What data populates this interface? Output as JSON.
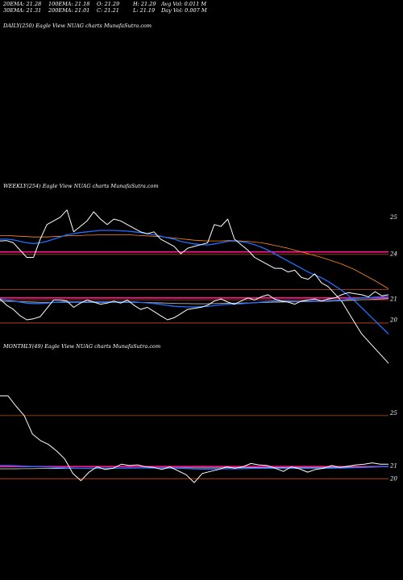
{
  "header": {
    "stats": [
      [
        "20EMA: 21.28",
        "100EMA: 21.18",
        "O: 21.29",
        "H: 21.29",
        "Avg Vol: 0.011 M"
      ],
      [
        "30EMA: 21.31",
        "200EMA: 21.01",
        "C: 21.21",
        "L: 21.19",
        "Day Vol: 0.007 M"
      ]
    ]
  },
  "colors": {
    "background": "#000000",
    "price": "#ffffff",
    "ema_short": "#1f6fff",
    "ema_mid": "#b8b8b8",
    "ema_long": "#ff8a1a",
    "avg_line": "#ff1493",
    "ref_line": "#d04a16"
  },
  "chart_data": [
    {
      "panel": "daily",
      "title": "DAILY(250) Eagle  View  NUAG charts MunafaSutra.com",
      "type": "line",
      "series": []
    },
    {
      "panel": "weekly",
      "title": "WEEKLY(254) Eagle  View  NUAG charts MunafaSutra.com",
      "type": "line",
      "upper_ticks": [
        24,
        25
      ],
      "lower_ticks": [
        21,
        20
      ],
      "upper_ylim": [
        24.0,
        25.7
      ],
      "lower_ylim": [
        19.5,
        22.2
      ],
      "upper_price": [
        24.35,
        24.36,
        24.3,
        24.1,
        23.9,
        23.9,
        24.4,
        24.8,
        24.9,
        25.0,
        25.2,
        24.6,
        24.75,
        24.9,
        25.15,
        24.95,
        24.8,
        24.95,
        24.9,
        24.8,
        24.7,
        24.6,
        24.55,
        24.6,
        24.4,
        24.3,
        24.2,
        24.0,
        24.15,
        24.2,
        24.25,
        24.3,
        24.8,
        24.75,
        24.95,
        24.4,
        24.25,
        24.1,
        23.9,
        23.8,
        23.7,
        23.6,
        23.6,
        23.5,
        23.55,
        23.35,
        23.3,
        23.45,
        23.2,
        23.1,
        22.9,
        22.7,
        22.4,
        22.1,
        21.8,
        21.6,
        21.4,
        21.2,
        21.0
      ],
      "upper_ema_short": [
        24.4,
        24.4,
        24.38,
        24.34,
        24.3,
        24.28,
        24.3,
        24.34,
        24.4,
        24.46,
        24.52,
        24.55,
        24.58,
        24.6,
        24.62,
        24.64,
        24.64,
        24.64,
        24.63,
        24.62,
        24.6,
        24.58,
        24.55,
        24.52,
        24.48,
        24.44,
        24.4,
        24.34,
        24.3,
        24.27,
        24.25,
        24.24,
        24.27,
        24.3,
        24.34,
        24.35,
        24.33,
        24.3,
        24.25,
        24.18,
        24.1,
        24.0,
        23.9,
        23.8,
        23.7,
        23.6,
        23.5,
        23.42,
        23.34,
        23.24,
        23.12,
        23.0,
        22.86,
        22.7,
        22.52,
        22.34,
        22.16,
        21.98,
        21.8
      ],
      "upper_ema_long": [
        24.5,
        24.5,
        24.49,
        24.48,
        24.47,
        24.46,
        24.46,
        24.46,
        24.47,
        24.48,
        24.49,
        24.5,
        24.5,
        24.51,
        24.51,
        24.52,
        24.52,
        24.52,
        24.52,
        24.52,
        24.51,
        24.5,
        24.49,
        24.48,
        24.47,
        24.45,
        24.43,
        24.41,
        24.39,
        24.37,
        24.36,
        24.35,
        24.35,
        24.35,
        24.36,
        24.36,
        24.35,
        24.34,
        24.32,
        24.3,
        24.27,
        24.23,
        24.19,
        24.15,
        24.1,
        24.05,
        24.0,
        23.95,
        23.9,
        23.84,
        23.78,
        23.72,
        23.64,
        23.56,
        23.46,
        23.36,
        23.26,
        23.15,
        23.04
      ],
      "lower_price": [
        21.0,
        20.7,
        20.5,
        20.2,
        20.0,
        20.05,
        20.15,
        20.55,
        20.95,
        20.95,
        20.9,
        20.6,
        20.8,
        20.95,
        20.85,
        20.75,
        20.8,
        20.9,
        20.8,
        20.95,
        20.7,
        20.5,
        20.6,
        20.4,
        20.2,
        20.0,
        20.1,
        20.3,
        20.5,
        20.55,
        20.6,
        20.7,
        20.9,
        21.0,
        20.85,
        20.75,
        20.9,
        21.05,
        20.95,
        21.1,
        21.2,
        21.0,
        20.9,
        20.85,
        20.75,
        20.9,
        20.95,
        21.0,
        20.9,
        21.0,
        21.05,
        21.2,
        21.3,
        21.25,
        21.2,
        21.1,
        21.35,
        21.15,
        21.2
      ],
      "lower_ema_short": [
        21.0,
        20.95,
        20.9,
        20.85,
        20.8,
        20.78,
        20.78,
        20.8,
        20.84,
        20.86,
        20.87,
        20.86,
        20.86,
        20.87,
        20.87,
        20.86,
        20.86,
        20.86,
        20.86,
        20.87,
        20.86,
        20.83,
        20.81,
        20.78,
        20.74,
        20.69,
        20.65,
        20.63,
        20.62,
        20.62,
        20.63,
        20.64,
        20.68,
        20.72,
        20.74,
        20.75,
        20.77,
        20.8,
        20.82,
        20.85,
        20.88,
        20.9,
        20.9,
        20.9,
        20.89,
        20.89,
        20.89,
        20.9,
        20.9,
        20.91,
        20.92,
        20.95,
        20.99,
        21.02,
        21.05,
        21.06,
        21.09,
        21.1,
        21.12
      ],
      "lower_ema_long": [
        20.9,
        20.89,
        20.88,
        20.87,
        20.86,
        20.85,
        20.84,
        20.84,
        20.84,
        20.84,
        20.84,
        20.84,
        20.84,
        20.84,
        20.84,
        20.84,
        20.84,
        20.84,
        20.84,
        20.84,
        20.84,
        20.83,
        20.83,
        20.82,
        20.81,
        20.8,
        20.79,
        20.78,
        20.78,
        20.77,
        20.77,
        20.77,
        20.78,
        20.79,
        20.79,
        20.8,
        20.8,
        20.81,
        20.82,
        20.83,
        20.84,
        20.85,
        20.85,
        20.86,
        20.86,
        20.87,
        20.87,
        20.88,
        20.88,
        20.89,
        20.9,
        20.91,
        20.93,
        20.94,
        20.96,
        20.97,
        20.99,
        21.0,
        21.02
      ],
      "upper_avg_level": 24.05,
      "upper_ref_level": 23.98,
      "upper_ref2_level": 23.02,
      "lower_avg_level": 21.05,
      "lower_ref_level": 20.96,
      "lower_ref2_level": 19.85
    },
    {
      "panel": "monthly",
      "title": "MONTHLY(49) Eagle  View  NUAG charts MunafaSutra.com",
      "type": "line",
      "ticks": [
        25,
        21,
        20
      ],
      "ylim": [
        19.4,
        27.0
      ],
      "price": [
        26.3,
        26.3,
        25.5,
        24.8,
        23.4,
        22.9,
        22.6,
        22.1,
        21.5,
        20.4,
        19.85,
        20.5,
        20.9,
        20.7,
        20.8,
        21.1,
        21.0,
        21.05,
        20.9,
        20.85,
        20.7,
        20.9,
        20.6,
        20.3,
        19.7,
        20.4,
        20.55,
        20.7,
        20.9,
        20.8,
        20.9,
        21.15,
        21.05,
        21.0,
        20.8,
        20.55,
        20.9,
        20.75,
        20.5,
        20.7,
        20.8,
        21.0,
        20.85,
        20.95,
        21.05,
        21.1,
        21.2,
        21.1,
        21.1
      ],
      "ema_short": [
        21.0,
        21.0,
        20.98,
        20.95,
        20.92,
        20.9,
        20.88,
        20.85,
        20.82,
        20.8,
        20.78,
        20.77,
        20.78,
        20.78,
        20.79,
        20.8,
        20.8,
        20.81,
        20.81,
        20.81,
        20.8,
        20.8,
        20.79,
        20.77,
        20.74,
        20.73,
        20.73,
        20.74,
        20.75,
        20.75,
        20.76,
        20.78,
        20.79,
        20.79,
        20.79,
        20.78,
        20.79,
        20.79,
        20.78,
        20.78,
        20.79,
        20.8,
        20.81,
        20.82,
        20.84,
        20.86,
        20.88,
        20.9,
        20.92
      ],
      "ema_long": [
        20.75,
        20.75,
        20.75,
        20.76,
        20.76,
        20.77,
        20.77,
        20.78,
        20.78,
        20.79,
        20.79,
        20.8,
        20.8,
        20.8,
        20.81,
        20.81,
        20.82,
        20.82,
        20.82,
        20.83,
        20.83,
        20.83,
        20.83,
        20.83,
        20.82,
        20.82,
        20.82,
        20.82,
        20.83,
        20.83,
        20.83,
        20.84,
        20.84,
        20.84,
        20.84,
        20.84,
        20.85,
        20.85,
        20.85,
        20.85,
        20.86,
        20.86,
        20.87,
        20.87,
        20.88,
        20.89,
        20.9,
        20.91,
        20.92
      ],
      "avg_level": 20.92,
      "ref_level": 24.8,
      "ref2_level": 20.0
    }
  ]
}
